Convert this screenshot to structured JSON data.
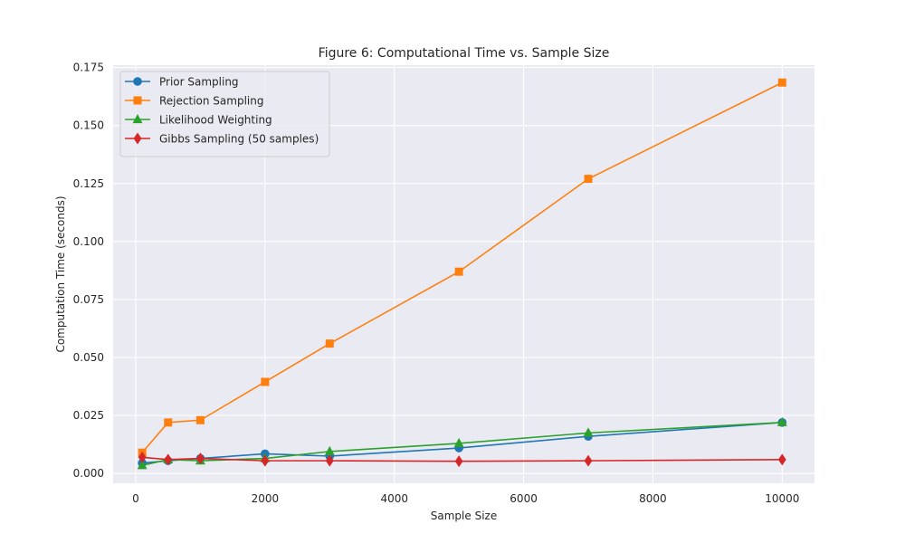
{
  "chart_data": {
    "type": "line",
    "title": "Figure 6: Computational Time vs. Sample Size",
    "xlabel": "Sample Size",
    "ylabel": "Computation Time (seconds)",
    "xlim": [
      -350,
      10500
    ],
    "ylim": [
      -0.0042,
      0.176
    ],
    "xticks": [
      0,
      2000,
      4000,
      6000,
      8000,
      10000
    ],
    "yticks": [
      0.0,
      0.025,
      0.05,
      0.075,
      0.1,
      0.125,
      0.15,
      0.175
    ],
    "ytick_labels": [
      "0.000",
      "0.025",
      "0.050",
      "0.075",
      "0.100",
      "0.125",
      "0.150",
      "0.175"
    ],
    "grid": true,
    "legend_position": "top-left",
    "x": [
      100,
      500,
      1000,
      2000,
      3000,
      5000,
      7000,
      10000
    ],
    "series": [
      {
        "name": "Prior Sampling",
        "color": "#1f77b4",
        "marker": "circle",
        "values": [
          0.0045,
          0.0055,
          0.0065,
          0.0085,
          0.0075,
          0.011,
          0.016,
          0.022
        ]
      },
      {
        "name": "Rejection Sampling",
        "color": "#ff7f0e",
        "marker": "square",
        "values": [
          0.009,
          0.022,
          0.023,
          0.0395,
          0.056,
          0.087,
          0.127,
          0.1685
        ]
      },
      {
        "name": "Likelihood Weighting",
        "color": "#2ca02c",
        "marker": "triangle",
        "values": [
          0.0035,
          0.006,
          0.0055,
          0.0065,
          0.0095,
          0.013,
          0.0175,
          0.022
        ]
      },
      {
        "name": "Gibbs Sampling (50 samples)",
        "color": "#d62728",
        "marker": "diamond",
        "values": [
          0.007,
          0.006,
          0.0065,
          0.0055,
          0.0055,
          0.0053,
          0.0055,
          0.006
        ]
      }
    ]
  }
}
